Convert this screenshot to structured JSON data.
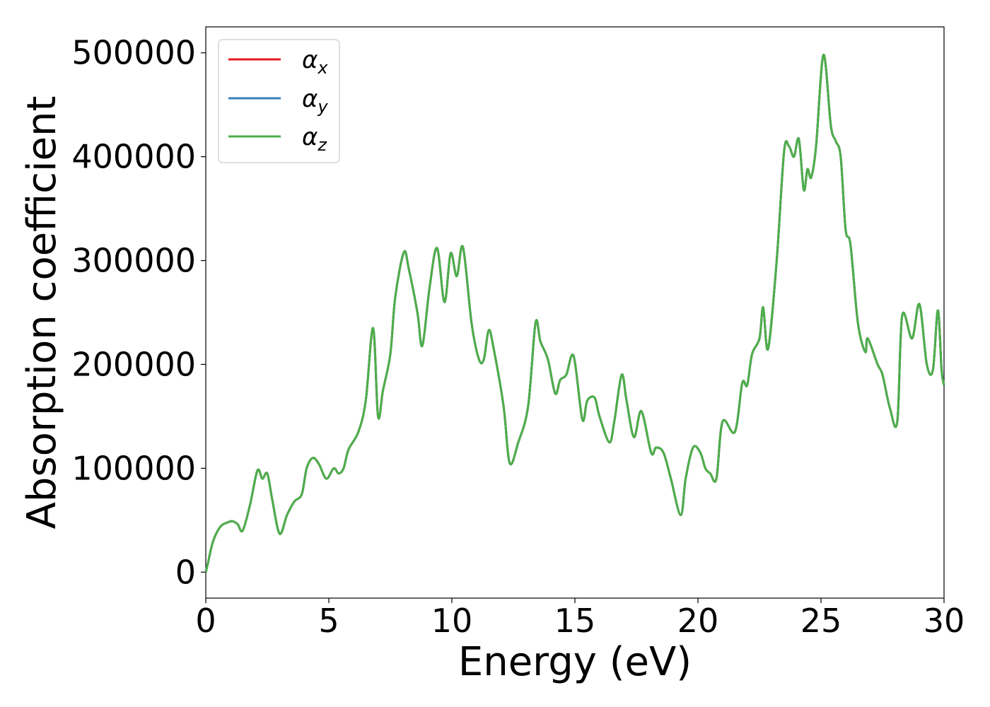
{
  "chart_data": {
    "type": "line",
    "title": "",
    "xlabel": "Energy (eV)",
    "ylabel": "Absorption coefficient",
    "xlim": [
      0,
      30
    ],
    "ylim": [
      -25000,
      525000
    ],
    "xticks": [
      0,
      5,
      10,
      15,
      20,
      25,
      30
    ],
    "xtick_labels": [
      "0",
      "5",
      "10",
      "15",
      "20",
      "25",
      "30"
    ],
    "yticks": [
      0,
      100000,
      200000,
      300000,
      400000,
      500000
    ],
    "ytick_labels": [
      "0",
      "100000",
      "200000",
      "300000",
      "400000",
      "500000"
    ],
    "grid": false,
    "legend_position": "top-left",
    "series": [
      {
        "name": "α",
        "subscript": "x",
        "color": "#e41a1c"
      },
      {
        "name": "α",
        "subscript": "y",
        "color": "#377eb8"
      },
      {
        "name": "α",
        "subscript": "z",
        "color": "#4daf4a"
      }
    ],
    "x": [
      0,
      0.1,
      0.3,
      0.6,
      0.9,
      1.1,
      1.3,
      1.5,
      1.8,
      2.1,
      2.3,
      2.5,
      2.7,
      3.0,
      3.3,
      3.6,
      3.9,
      4.1,
      4.35,
      4.6,
      4.9,
      5.2,
      5.4,
      5.6,
      5.8,
      6.2,
      6.5,
      6.8,
      7.0,
      7.2,
      7.5,
      7.7,
      8.05,
      8.25,
      8.6,
      8.8,
      9.1,
      9.4,
      9.7,
      9.95,
      10.2,
      10.45,
      10.8,
      11.1,
      11.3,
      11.5,
      11.7,
      12.1,
      12.35,
      12.7,
      13.1,
      13.4,
      13.6,
      13.9,
      14.2,
      14.4,
      14.65,
      14.95,
      15.3,
      15.5,
      15.8,
      16.0,
      16.4,
      16.6,
      16.9,
      17.1,
      17.4,
      17.7,
      18.1,
      18.3,
      18.6,
      18.9,
      19.3,
      19.5,
      19.8,
      20.1,
      20.3,
      20.5,
      20.75,
      21.0,
      21.5,
      21.8,
      22.0,
      22.2,
      22.5,
      22.65,
      22.85,
      23.2,
      23.5,
      23.7,
      23.9,
      24.1,
      24.3,
      24.45,
      24.6,
      24.8,
      25.1,
      25.4,
      25.6,
      25.8,
      26.0,
      26.2,
      26.5,
      26.8,
      26.9,
      27.3,
      27.5,
      27.8,
      28.1,
      28.3,
      28.7,
      29.0,
      29.3,
      29.55,
      29.75,
      29.9,
      30.0
    ],
    "values": [
      0,
      10000,
      30000,
      44000,
      48000,
      49000,
      46000,
      40000,
      65000,
      98000,
      90000,
      95000,
      70000,
      37000,
      55000,
      68000,
      75000,
      100000,
      110000,
      104000,
      90000,
      100000,
      95000,
      100000,
      118000,
      135000,
      165000,
      235000,
      150000,
      175000,
      210000,
      265000,
      308000,
      292000,
      250000,
      218000,
      275000,
      312000,
      260000,
      307000,
      285000,
      313000,
      240000,
      205000,
      205000,
      233000,
      215000,
      160000,
      105000,
      125000,
      160000,
      240000,
      222000,
      205000,
      172000,
      185000,
      190000,
      208000,
      147000,
      165000,
      168000,
      150000,
      125000,
      145000,
      190000,
      165000,
      130000,
      155000,
      115000,
      120000,
      115000,
      90000,
      55000,
      90000,
      120000,
      115000,
      100000,
      95000,
      90000,
      145000,
      135000,
      182000,
      180000,
      210000,
      225000,
      255000,
      215000,
      300000,
      405000,
      410000,
      400000,
      417000,
      368000,
      388000,
      380000,
      410000,
      498000,
      430000,
      415000,
      400000,
      330000,
      315000,
      240000,
      212000,
      225000,
      200000,
      190000,
      158000,
      145000,
      247000,
      225000,
      258000,
      200000,
      195000,
      252000,
      195000,
      180000
    ]
  }
}
